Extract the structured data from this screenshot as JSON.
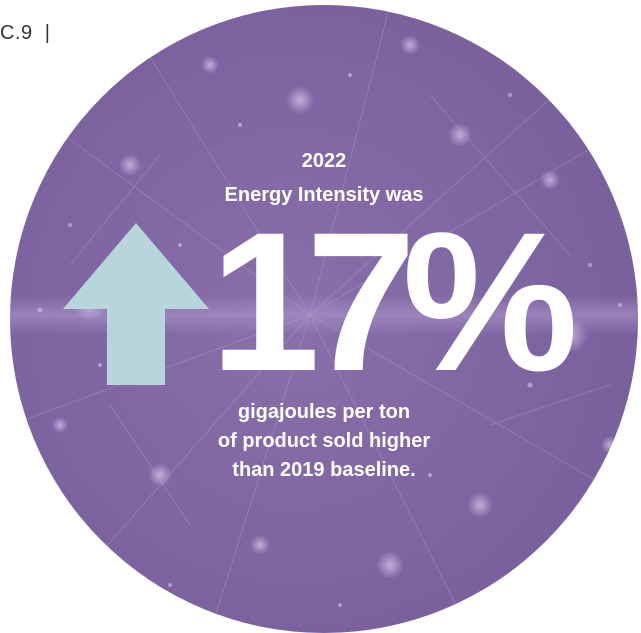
{
  "page_reference": "C.9  |",
  "infographic": {
    "year": "2022",
    "heading": "Energy Intensity was",
    "value": "17%",
    "direction_icon": "arrow-up-icon",
    "caption_lines": [
      "gigajoules per ton",
      "of product sold higher",
      "than 2019 baseline."
    ]
  },
  "colors": {
    "circle": "#7e64a0",
    "arrow": "#b9d5dc",
    "text": "#ffffff"
  }
}
